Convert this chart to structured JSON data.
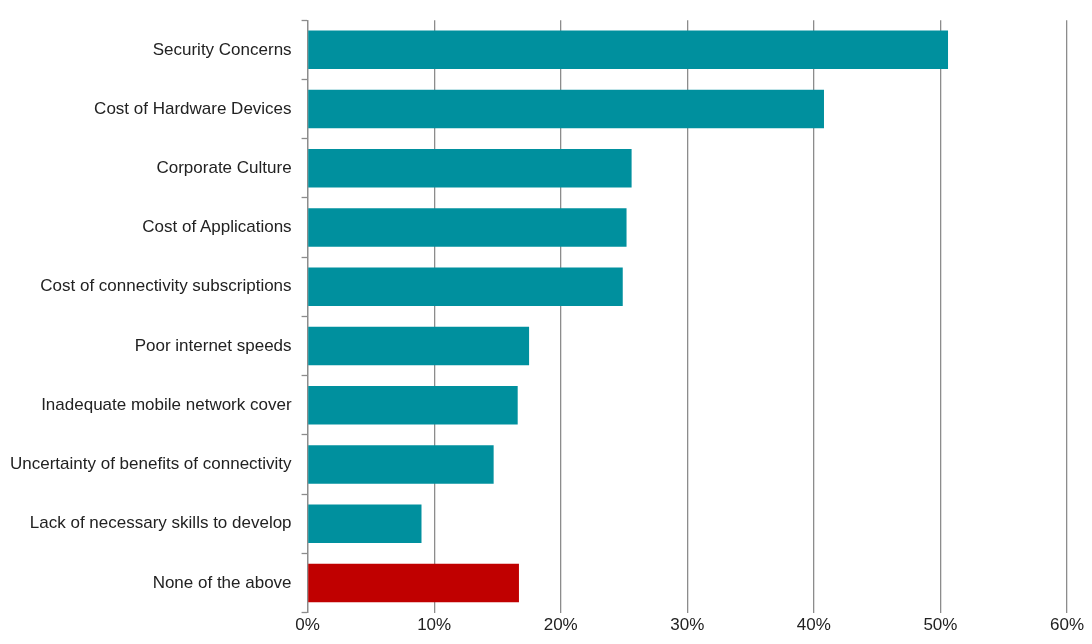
{
  "chart_data": {
    "type": "bar",
    "orientation": "horizontal",
    "categories": [
      "Security Concerns",
      "Cost of Hardware Devices",
      "Corporate Culture",
      "Cost of Applications",
      "Cost of connectivity subscriptions",
      "Poor internet speeds",
      "Inadequate mobile network cover",
      "Uncertainty of benefits of connectivity",
      "Lack of necessary skills to develop",
      "None of the above"
    ],
    "values": [
      50.6,
      40.8,
      25.6,
      25.2,
      24.9,
      17.5,
      16.6,
      14.7,
      9.0,
      16.7
    ],
    "colors": [
      "#00909e",
      "#00909e",
      "#00909e",
      "#00909e",
      "#00909e",
      "#00909e",
      "#00909e",
      "#00909e",
      "#00909e",
      "#c00000"
    ],
    "xlim": [
      0,
      60
    ],
    "xticks": [
      {
        "value": 0,
        "label": "0%"
      },
      {
        "value": 10,
        "label": "10%"
      },
      {
        "value": 20,
        "label": "20%"
      },
      {
        "value": 30,
        "label": "30%"
      },
      {
        "value": 40,
        "label": "40%"
      },
      {
        "value": 50,
        "label": "50%"
      },
      {
        "value": 60,
        "label": "60%"
      }
    ],
    "grid": "x",
    "legend": false
  }
}
